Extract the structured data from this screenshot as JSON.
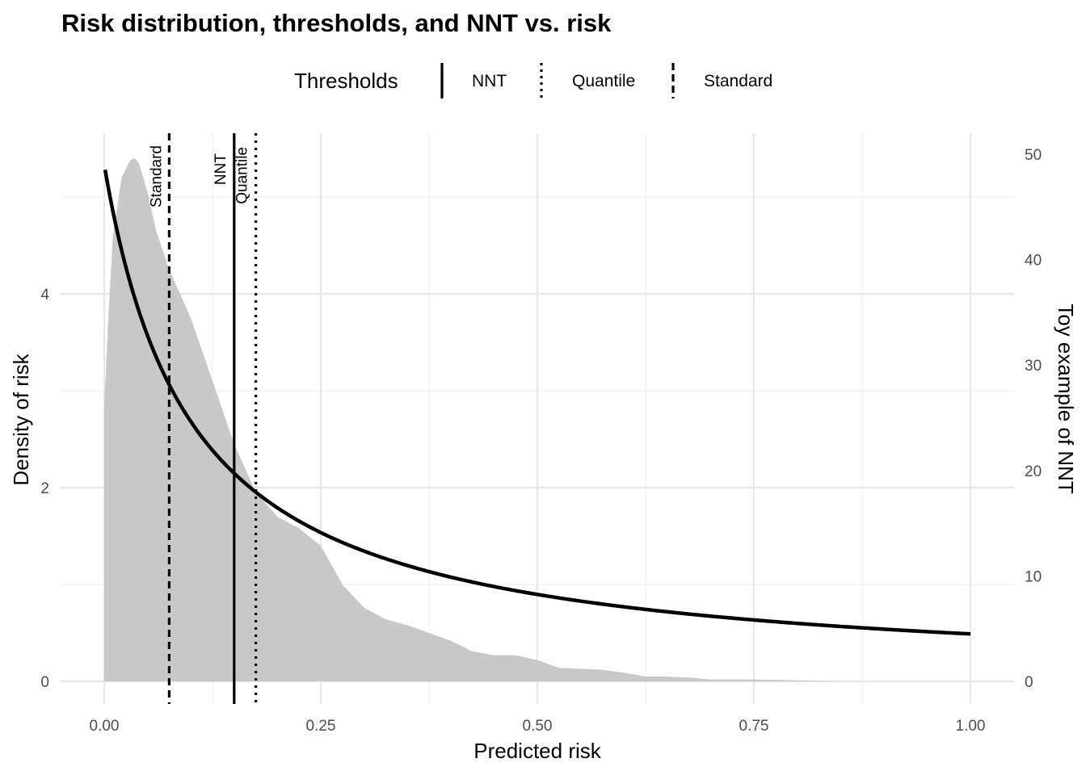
{
  "chart_data": {
    "type": "area",
    "title": "Risk distribution, thresholds, and NNT vs. risk",
    "xlabel": "Predicted risk",
    "ylabel": "Density of risk",
    "y2label": "Toy example of NNT",
    "xlim": [
      0.0,
      1.0
    ],
    "ylim": [
      0,
      5.5
    ],
    "y2lim": [
      0,
      50
    ],
    "x_ticks": [
      0.0,
      0.25,
      0.5,
      0.75,
      1.0
    ],
    "x_tick_labels": [
      "0.00",
      "0.25",
      "0.50",
      "0.75",
      "1.00"
    ],
    "y_ticks": [
      0,
      2,
      4
    ],
    "y_tick_labels": [
      "0",
      "2",
      "4"
    ],
    "y2_ticks": [
      0,
      10,
      20,
      30,
      40,
      50
    ],
    "y2_tick_labels": [
      "0",
      "10",
      "20",
      "30",
      "40",
      "50"
    ],
    "grid": true,
    "legend": {
      "title": "Thresholds",
      "position": "top",
      "entries": [
        {
          "label": "NNT",
          "linetype": "solid"
        },
        {
          "label": "Quantile",
          "linetype": "dotted"
        },
        {
          "label": "Standard",
          "linetype": "dashed"
        }
      ]
    },
    "density": {
      "name": "Density of risk",
      "color": "#c8c8c8",
      "x": [
        0.0,
        0.005,
        0.01,
        0.02,
        0.03,
        0.035,
        0.04,
        0.05,
        0.06,
        0.075,
        0.1,
        0.125,
        0.15,
        0.175,
        0.2,
        0.225,
        0.25,
        0.275,
        0.3,
        0.325,
        0.35,
        0.375,
        0.4,
        0.425,
        0.45,
        0.475,
        0.5,
        0.525,
        0.55,
        0.575,
        0.6,
        0.625,
        0.65,
        0.675,
        0.7,
        0.75,
        0.8,
        0.85,
        0.9,
        0.95,
        1.0
      ],
      "y": [
        2.85,
        3.8,
        4.6,
        5.2,
        5.38,
        5.4,
        5.35,
        5.05,
        4.65,
        4.25,
        3.75,
        3.1,
        2.45,
        1.95,
        1.7,
        1.58,
        1.4,
        1.0,
        0.76,
        0.64,
        0.58,
        0.5,
        0.42,
        0.31,
        0.27,
        0.27,
        0.22,
        0.14,
        0.13,
        0.12,
        0.09,
        0.05,
        0.05,
        0.04,
        0.02,
        0.02,
        0.01,
        0.0,
        0.0,
        0.0,
        0.0
      ]
    },
    "nnt_curve": {
      "name": "Toy example of NNT",
      "color": "#000000",
      "x_start": 0.001,
      "x_end": 1.0,
      "y2_at_zero": 49.0,
      "y2_at_one": 4.5
    },
    "thresholds": [
      {
        "label": "Standard",
        "x": 0.075,
        "linetype": "dashed"
      },
      {
        "label": "NNT",
        "x": 0.15,
        "linetype": "solid"
      },
      {
        "label": "Quantile",
        "x": 0.175,
        "linetype": "dotted"
      }
    ]
  }
}
